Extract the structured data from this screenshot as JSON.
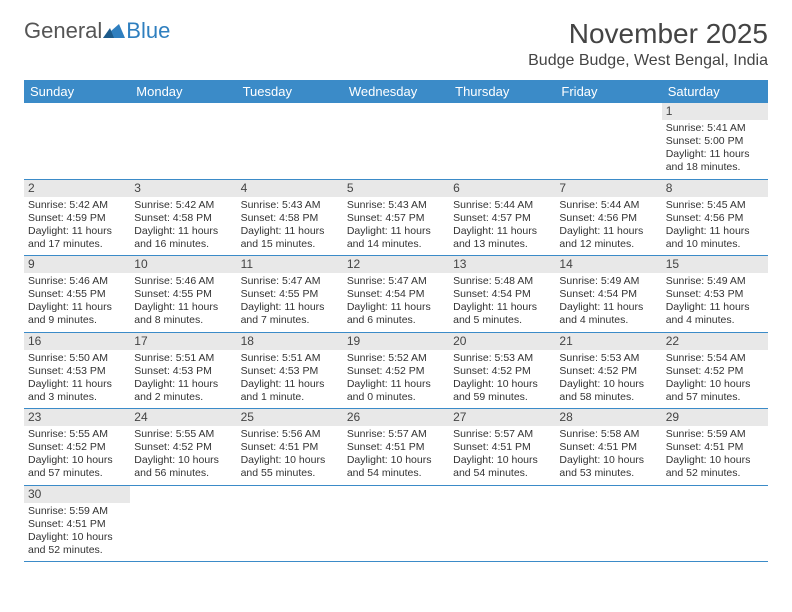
{
  "brand": {
    "general": "General",
    "blue": "Blue"
  },
  "title": "November 2025",
  "location": "Budge Budge, West Bengal, India",
  "colors": {
    "header_bg": "#3b8bc8",
    "daynum_bg": "#e8e8e8",
    "rule": "#3b8bc8",
    "text": "#333333"
  },
  "dayNames": [
    "Sunday",
    "Monday",
    "Tuesday",
    "Wednesday",
    "Thursday",
    "Friday",
    "Saturday"
  ],
  "firstDayOffset": 6,
  "days": [
    {
      "n": 1,
      "sr": "5:41 AM",
      "ss": "5:00 PM",
      "dl": "11 hours and 18 minutes."
    },
    {
      "n": 2,
      "sr": "5:42 AM",
      "ss": "4:59 PM",
      "dl": "11 hours and 17 minutes."
    },
    {
      "n": 3,
      "sr": "5:42 AM",
      "ss": "4:58 PM",
      "dl": "11 hours and 16 minutes."
    },
    {
      "n": 4,
      "sr": "5:43 AM",
      "ss": "4:58 PM",
      "dl": "11 hours and 15 minutes."
    },
    {
      "n": 5,
      "sr": "5:43 AM",
      "ss": "4:57 PM",
      "dl": "11 hours and 14 minutes."
    },
    {
      "n": 6,
      "sr": "5:44 AM",
      "ss": "4:57 PM",
      "dl": "11 hours and 13 minutes."
    },
    {
      "n": 7,
      "sr": "5:44 AM",
      "ss": "4:56 PM",
      "dl": "11 hours and 12 minutes."
    },
    {
      "n": 8,
      "sr": "5:45 AM",
      "ss": "4:56 PM",
      "dl": "11 hours and 10 minutes."
    },
    {
      "n": 9,
      "sr": "5:46 AM",
      "ss": "4:55 PM",
      "dl": "11 hours and 9 minutes."
    },
    {
      "n": 10,
      "sr": "5:46 AM",
      "ss": "4:55 PM",
      "dl": "11 hours and 8 minutes."
    },
    {
      "n": 11,
      "sr": "5:47 AM",
      "ss": "4:55 PM",
      "dl": "11 hours and 7 minutes."
    },
    {
      "n": 12,
      "sr": "5:47 AM",
      "ss": "4:54 PM",
      "dl": "11 hours and 6 minutes."
    },
    {
      "n": 13,
      "sr": "5:48 AM",
      "ss": "4:54 PM",
      "dl": "11 hours and 5 minutes."
    },
    {
      "n": 14,
      "sr": "5:49 AM",
      "ss": "4:54 PM",
      "dl": "11 hours and 4 minutes."
    },
    {
      "n": 15,
      "sr": "5:49 AM",
      "ss": "4:53 PM",
      "dl": "11 hours and 4 minutes."
    },
    {
      "n": 16,
      "sr": "5:50 AM",
      "ss": "4:53 PM",
      "dl": "11 hours and 3 minutes."
    },
    {
      "n": 17,
      "sr": "5:51 AM",
      "ss": "4:53 PM",
      "dl": "11 hours and 2 minutes."
    },
    {
      "n": 18,
      "sr": "5:51 AM",
      "ss": "4:53 PM",
      "dl": "11 hours and 1 minute."
    },
    {
      "n": 19,
      "sr": "5:52 AM",
      "ss": "4:52 PM",
      "dl": "11 hours and 0 minutes."
    },
    {
      "n": 20,
      "sr": "5:53 AM",
      "ss": "4:52 PM",
      "dl": "10 hours and 59 minutes."
    },
    {
      "n": 21,
      "sr": "5:53 AM",
      "ss": "4:52 PM",
      "dl": "10 hours and 58 minutes."
    },
    {
      "n": 22,
      "sr": "5:54 AM",
      "ss": "4:52 PM",
      "dl": "10 hours and 57 minutes."
    },
    {
      "n": 23,
      "sr": "5:55 AM",
      "ss": "4:52 PM",
      "dl": "10 hours and 57 minutes."
    },
    {
      "n": 24,
      "sr": "5:55 AM",
      "ss": "4:52 PM",
      "dl": "10 hours and 56 minutes."
    },
    {
      "n": 25,
      "sr": "5:56 AM",
      "ss": "4:51 PM",
      "dl": "10 hours and 55 minutes."
    },
    {
      "n": 26,
      "sr": "5:57 AM",
      "ss": "4:51 PM",
      "dl": "10 hours and 54 minutes."
    },
    {
      "n": 27,
      "sr": "5:57 AM",
      "ss": "4:51 PM",
      "dl": "10 hours and 54 minutes."
    },
    {
      "n": 28,
      "sr": "5:58 AM",
      "ss": "4:51 PM",
      "dl": "10 hours and 53 minutes."
    },
    {
      "n": 29,
      "sr": "5:59 AM",
      "ss": "4:51 PM",
      "dl": "10 hours and 52 minutes."
    },
    {
      "n": 30,
      "sr": "5:59 AM",
      "ss": "4:51 PM",
      "dl": "10 hours and 52 minutes."
    }
  ],
  "labels": {
    "sunrise": "Sunrise: ",
    "sunset": "Sunset: ",
    "daylight": "Daylight: "
  }
}
